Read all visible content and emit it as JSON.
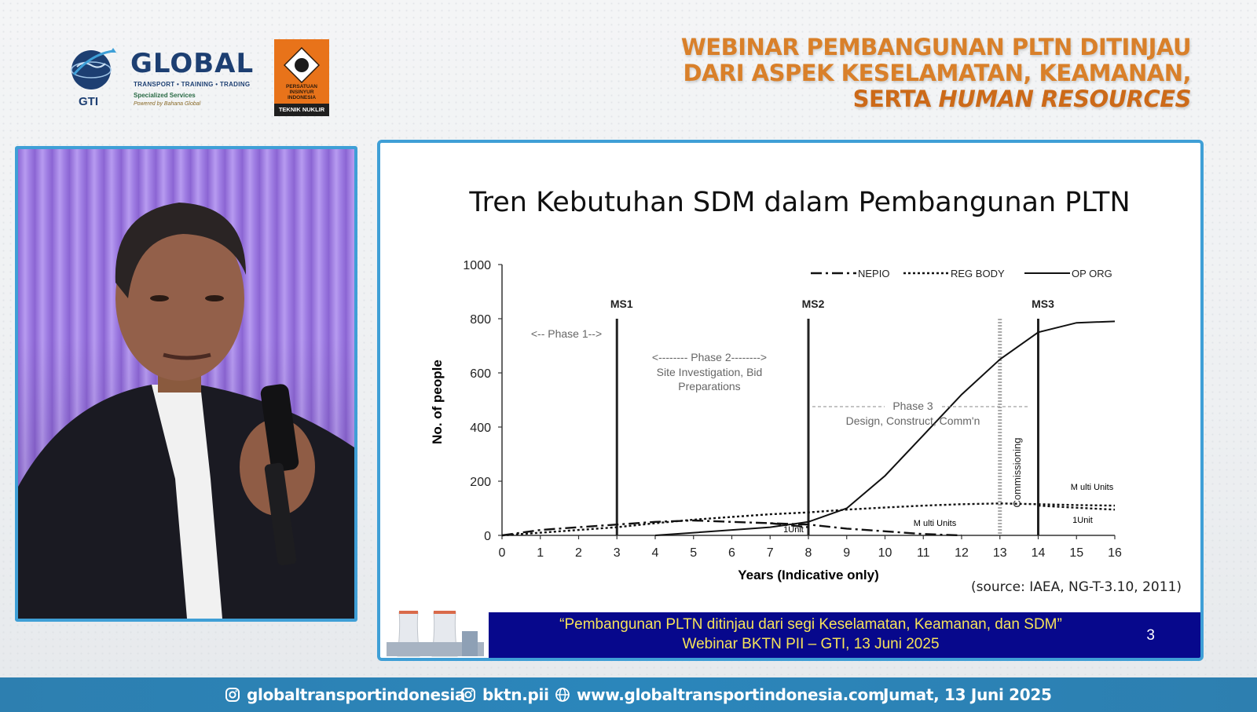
{
  "branding": {
    "gti_name": "GLOBAL",
    "gti_abbr": "GTI",
    "gti_tagline": "TRANSPORT • TRAINING • TRADING",
    "gti_specialized": "Specialized Services",
    "gti_powered": "Powered by Bahana Global",
    "pii_text": "PERSATUAN INSINYUR INDONESIA",
    "pii_band": "TEKNIK NUKLIR"
  },
  "headline": {
    "line1": "WEBINAR PEMBANGUNAN PLTN DITINJAU",
    "line2": "DARI ASPEK KESELAMATAN, KEAMANAN,",
    "line3_plain": "SERTA ",
    "line3_italic": "HUMAN RESOURCES"
  },
  "slide": {
    "title": "Tren Kebutuhan SDM dalam Pembangunan PLTN",
    "source": "(source: IAEA, NG-T-3.10, 2011)",
    "footer_line1": "“Pembangunan PLTN ditinjau dari segi Keselamatan, Keamanan, dan SDM”",
    "footer_line2": "Webinar BKTN PII – GTI, 13 Juni 2025",
    "page_number": "3"
  },
  "chart_data": {
    "type": "line",
    "xlabel": "Years (Indicative only)",
    "ylabel": "No. of people",
    "xlim": [
      0,
      16
    ],
    "ylim": [
      0,
      1000
    ],
    "x_ticks": [
      "0",
      "1",
      "2",
      "3",
      "4",
      "5",
      "6",
      "7",
      "8",
      "9",
      "10",
      "11",
      "12",
      "13",
      "14",
      "15",
      "16"
    ],
    "y_ticks": [
      "0",
      "200",
      "400",
      "600",
      "800",
      "1000"
    ],
    "legend_position": "top-right",
    "series": [
      {
        "name": "NEPIO",
        "style": "dash-dot",
        "points": [
          [
            0,
            0
          ],
          [
            1,
            20
          ],
          [
            2,
            30
          ],
          [
            3,
            40
          ],
          [
            4,
            50
          ],
          [
            5,
            55
          ],
          [
            6,
            50
          ],
          [
            7,
            45
          ],
          [
            8,
            40
          ],
          [
            9,
            25
          ],
          [
            10,
            15
          ],
          [
            11,
            5
          ],
          [
            12,
            0
          ]
        ]
      },
      {
        "name": "REG BODY",
        "style": "dotted",
        "points": [
          [
            0,
            0
          ],
          [
            1,
            10
          ],
          [
            2,
            20
          ],
          [
            3,
            30
          ],
          [
            4,
            45
          ],
          [
            5,
            58
          ],
          [
            6,
            68
          ],
          [
            7,
            78
          ],
          [
            8,
            85
          ],
          [
            9,
            95
          ],
          [
            10,
            103
          ],
          [
            11,
            110
          ],
          [
            12,
            115
          ],
          [
            13,
            118
          ],
          [
            14,
            115
          ],
          [
            15,
            112
          ],
          [
            16,
            110
          ]
        ]
      },
      {
        "name": "OP ORG",
        "style": "solid",
        "points": [
          [
            4,
            0
          ],
          [
            5,
            10
          ],
          [
            6,
            20
          ],
          [
            7,
            30
          ],
          [
            8,
            50
          ],
          [
            9,
            100
          ],
          [
            10,
            220
          ],
          [
            11,
            370
          ],
          [
            12,
            520
          ],
          [
            13,
            650
          ],
          [
            14,
            750
          ],
          [
            15,
            785
          ],
          [
            16,
            790
          ]
        ]
      }
    ],
    "secondary_lines": [
      {
        "label": "REG BODY 1Unit",
        "style": "dotted",
        "points": [
          [
            14,
            110
          ],
          [
            15,
            102
          ],
          [
            16,
            95
          ]
        ]
      },
      {
        "label": "NEPIO 1Unit",
        "style": "dash-dot",
        "points": [
          [
            7,
            45
          ],
          [
            8,
            30
          ]
        ]
      }
    ],
    "milestones": [
      {
        "label": "MS1",
        "x": 3
      },
      {
        "label": "MS2",
        "x": 8
      },
      {
        "label": "MS3",
        "x": 14
      }
    ],
    "commissioning": {
      "label": "Commissioning",
      "x": 13
    },
    "annotations": {
      "phase1": "<-- Phase 1-->",
      "phase2_title": "<-------- Phase 2-------->",
      "phase2_line1": "Site Investigation, Bid",
      "phase2_line2": "Preparations",
      "phase3_title": "Phase 3",
      "phase3_sub": "Design, Construct, Comm'n",
      "multi_units_right": "M ulti Units",
      "one_unit_right": "1Unit",
      "multi_units_mid": "M ulti Units",
      "one_unit_mid": "1Unit"
    }
  },
  "bottom_bar": {
    "instagram_1": "globaltransportindonesia",
    "instagram_2": "bktn.pii",
    "website": "www.globaltransportindonesia.com",
    "date": "Jumat, 13 Juni 2025"
  }
}
